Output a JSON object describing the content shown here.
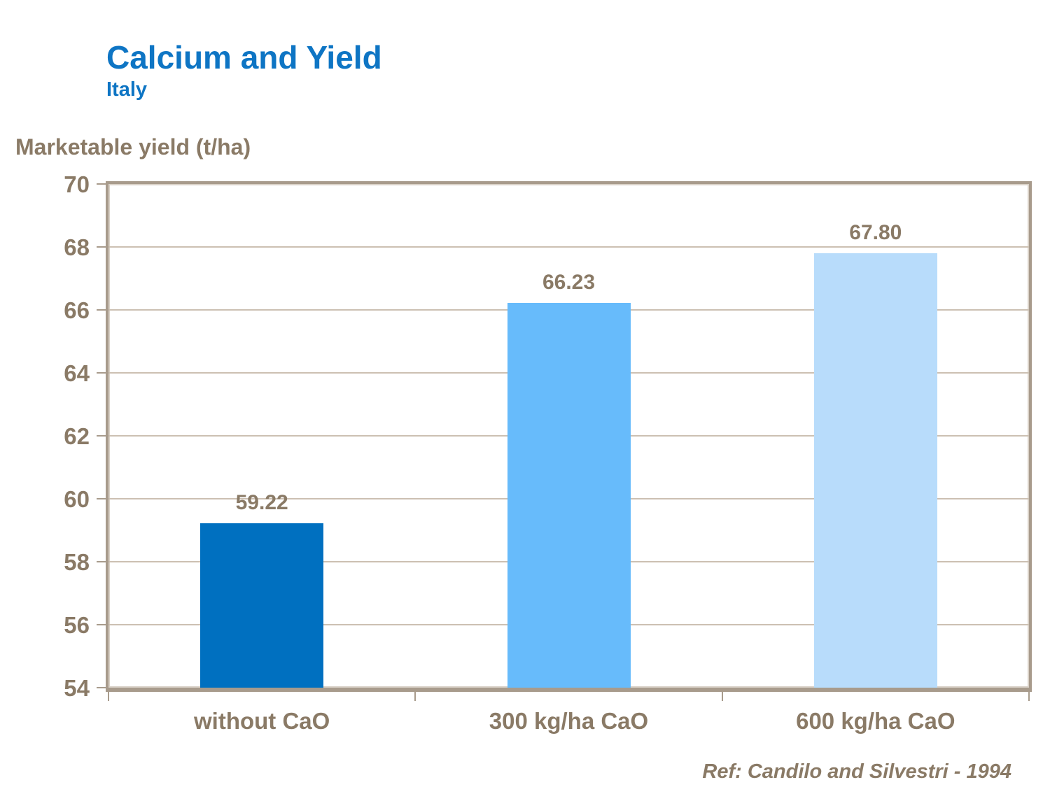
{
  "header": {
    "title": "Calcium and Yield",
    "subtitle": "Italy"
  },
  "footer": {
    "reference": "Ref: Candilo and Silvestri - 1994"
  },
  "colors": {
    "title_blue": "#0E75C4",
    "text_brown": "#8A7A66",
    "axis_border": "#A89B8C",
    "axis_border_highlight": "#D9D1C7",
    "gridline": "#CCC0B2",
    "bars": [
      "#0070C0",
      "#67BBFB",
      "#B8DCFB"
    ],
    "background": "#FFFFFF"
  },
  "chart_data": {
    "type": "bar",
    "title": "Calcium and Yield",
    "subtitle": "Italy",
    "ylabel": "Marketable yield (t/ha)",
    "xlabel": "",
    "categories": [
      "without CaO",
      "300 kg/ha CaO",
      "600 kg/ha CaO"
    ],
    "values": [
      59.22,
      66.23,
      67.8
    ],
    "value_labels": [
      "59.22",
      "66.23",
      "67.80"
    ],
    "ylim": [
      54,
      70
    ],
    "yticks": [
      54,
      56,
      58,
      60,
      62,
      64,
      66,
      68,
      70
    ],
    "grid": "horizontal",
    "legend_position": "none",
    "bar_colors": [
      "#0070C0",
      "#67BBFB",
      "#B8DCFB"
    ],
    "annotation": "Ref: Candilo and Silvestri - 1994"
  }
}
